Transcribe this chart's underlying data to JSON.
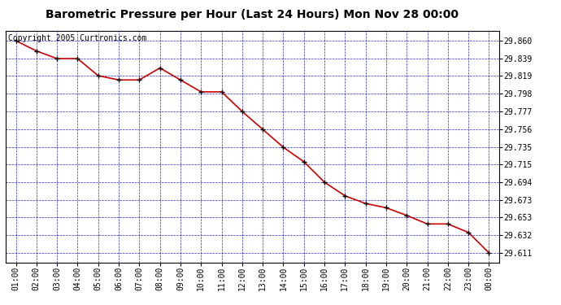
{
  "title": "Barometric Pressure per Hour (Last 24 Hours) Mon Nov 28 00:00",
  "copyright": "Copyright 2005 Curtronics.com",
  "x_labels": [
    "01:00",
    "02:00",
    "03:00",
    "04:00",
    "05:00",
    "06:00",
    "07:00",
    "08:00",
    "09:00",
    "10:00",
    "11:00",
    "12:00",
    "13:00",
    "14:00",
    "15:00",
    "16:00",
    "17:00",
    "18:00",
    "19:00",
    "20:00",
    "21:00",
    "22:00",
    "23:00",
    "00:00"
  ],
  "y_values": [
    29.86,
    29.848,
    29.839,
    29.839,
    29.819,
    29.814,
    29.814,
    29.828,
    29.814,
    29.8,
    29.8,
    29.777,
    29.756,
    29.735,
    29.718,
    29.694,
    29.678,
    29.669,
    29.664,
    29.655,
    29.645,
    29.645,
    29.635,
    29.611
  ],
  "yticks": [
    29.611,
    29.632,
    29.653,
    29.673,
    29.694,
    29.715,
    29.735,
    29.756,
    29.777,
    29.798,
    29.819,
    29.839,
    29.86
  ],
  "line_color": "#cc0000",
  "marker_color": "#000000",
  "bg_color": "#ffffff",
  "grid_color": "#0000cc",
  "title_fontsize": 10,
  "copyright_fontsize": 7,
  "tick_fontsize": 7,
  "ymin": 29.6,
  "ymax": 29.872
}
